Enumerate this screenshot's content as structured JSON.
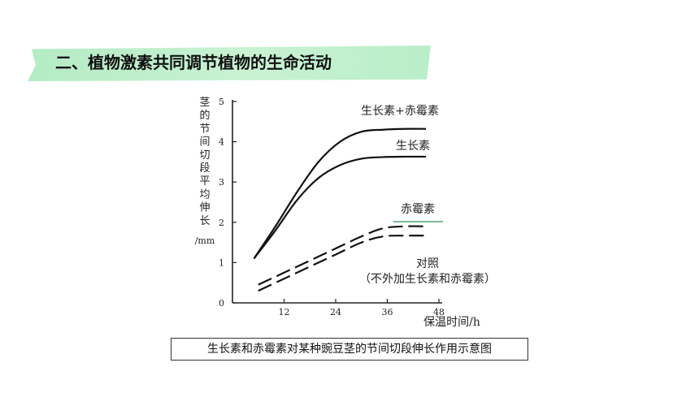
{
  "slide": {
    "heading": "二、植物激素共同调节植物的生命活动",
    "caption": "生长素和赤霉素对某种豌豆茎的节间切段伸长作用示意图"
  },
  "chart_data": {
    "type": "line",
    "title": "",
    "xlabel": "保温时间/h",
    "ylabel_chars": [
      "茎",
      "的",
      "节",
      "间",
      "切",
      "段",
      "平",
      "均",
      "伸",
      "长"
    ],
    "ylabel_unit": "/mm",
    "xlim": [
      0,
      48
    ],
    "ylim": [
      0,
      5
    ],
    "xticks": [
      12,
      24,
      36,
      48
    ],
    "yticks": [
      0,
      1,
      2,
      3,
      4,
      5
    ],
    "grid": false,
    "legend": "labels placed next to each curve",
    "series": [
      {
        "name": "生长素+赤霉素",
        "style": "solid",
        "x": [
          5,
          10,
          15,
          20,
          25,
          30,
          35,
          40,
          45
        ],
        "y": [
          1.1,
          1.9,
          2.75,
          3.5,
          4.0,
          4.25,
          4.3,
          4.32,
          4.32
        ]
      },
      {
        "name": "生长素",
        "style": "solid",
        "x": [
          5,
          10,
          15,
          20,
          25,
          30,
          35,
          40,
          45
        ],
        "y": [
          1.1,
          1.8,
          2.55,
          3.1,
          3.42,
          3.58,
          3.62,
          3.63,
          3.63
        ]
      },
      {
        "name": "赤霉素",
        "style": "dashed",
        "x": [
          6,
          12,
          18,
          24,
          30,
          35,
          40,
          45
        ],
        "y": [
          0.45,
          0.75,
          1.05,
          1.35,
          1.65,
          1.85,
          1.9,
          1.9
        ]
      },
      {
        "name": "对照",
        "note": "（不外加生长素和赤霉素）",
        "style": "dashed",
        "x": [
          6,
          12,
          18,
          24,
          30,
          35,
          40,
          45
        ],
        "y": [
          0.3,
          0.6,
          0.9,
          1.2,
          1.5,
          1.65,
          1.67,
          1.67
        ]
      }
    ]
  }
}
